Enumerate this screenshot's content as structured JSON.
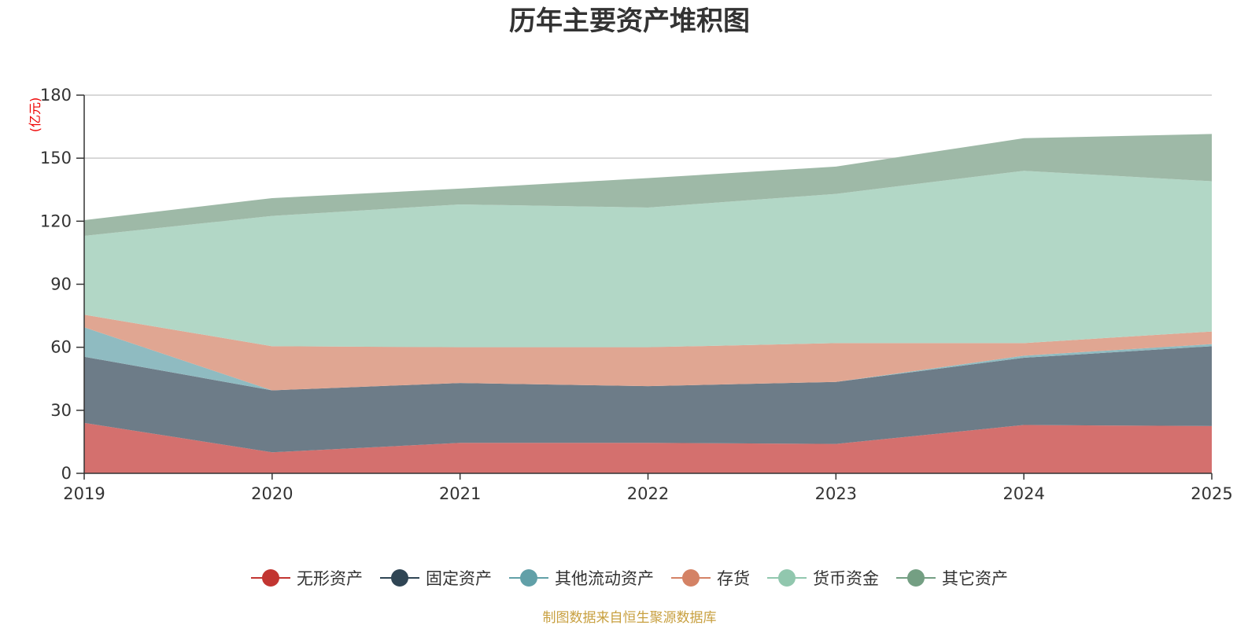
{
  "chart_data": {
    "type": "area",
    "stacked": true,
    "title": "历年主要资产堆积图",
    "ylabel": "(亿元)",
    "xlabel": "",
    "source_note": "制图数据来自恒生聚源数据库",
    "x": [
      "2019",
      "2020",
      "2021",
      "2022",
      "2023",
      "2024",
      "2025"
    ],
    "ylim": [
      0,
      180
    ],
    "yticks": [
      0,
      30,
      60,
      90,
      120,
      150,
      180
    ],
    "grid": true,
    "legend_position": "bottom",
    "series": [
      {
        "name": "无形资产",
        "values": [
          24,
          10,
          14.5,
          14.5,
          14,
          23,
          22.5
        ],
        "color": "#c23531",
        "fill": "#d4706e"
      },
      {
        "name": "固定资产",
        "values": [
          31.5,
          29.5,
          28.5,
          27,
          29.5,
          32,
          38
        ],
        "color": "#2f4554",
        "fill": "#6d7c88"
      },
      {
        "name": "其他流动资产",
        "values": [
          14,
          0,
          0,
          0,
          0,
          1,
          1
        ],
        "color": "#61a0a8",
        "fill": "#8fbbc1"
      },
      {
        "name": "存货",
        "values": [
          6,
          21,
          17,
          18.5,
          18.5,
          6,
          6
        ],
        "color": "#d48265",
        "fill": "#e0a692"
      },
      {
        "name": "货币资金",
        "values": [
          37.5,
          62,
          68,
          66.5,
          71,
          82,
          71.5
        ],
        "color": "#91c7ae",
        "fill": "#b2d7c6"
      },
      {
        "name": "其它资产",
        "values": [
          7.5,
          8.5,
          7.5,
          14,
          13,
          15.5,
          22.5
        ],
        "color": "#749f83",
        "fill": "#9eb9a7"
      }
    ]
  },
  "colors": {
    "title": "#333333",
    "axis": "#333333",
    "grid": "#cccccc",
    "unit_label": "#ee0000",
    "source_label": "#c8a040"
  }
}
